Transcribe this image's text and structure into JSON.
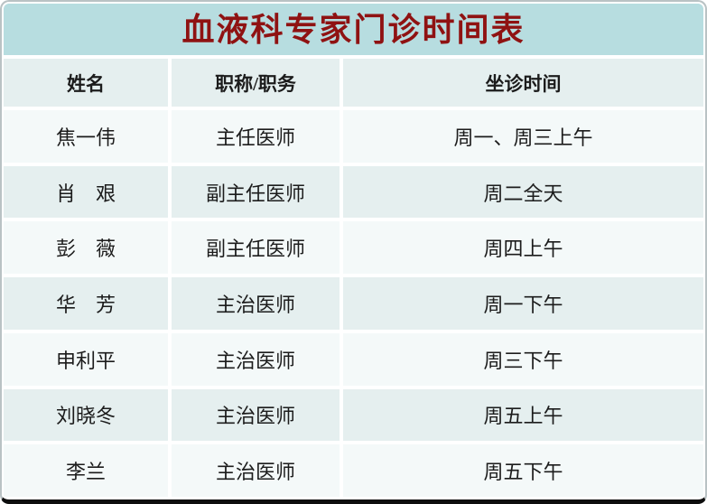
{
  "title": "血液科专家门诊时间表",
  "table": {
    "headers": [
      "姓名",
      "职称/职务",
      "坐诊时间"
    ],
    "rows": [
      [
        "焦一伟",
        "主任医师",
        "周一、周三上午"
      ],
      [
        "肖　艰",
        "副主任医师",
        "周二全天"
      ],
      [
        "彭　薇",
        "副主任医师",
        "周四上午"
      ],
      [
        "华　芳",
        "主治医师",
        "周一下午"
      ],
      [
        "申利平",
        "主治医师",
        "周三下午"
      ],
      [
        "刘晓冬",
        "主治医师",
        "周五上午"
      ],
      [
        "李兰",
        "主治医师",
        "周五下午"
      ]
    ]
  },
  "colors": {
    "title_bg": "#b7dde0",
    "title_text": "#8f1212",
    "header_bg": "#e5efef",
    "row_odd_bg": "#f4f9f9",
    "row_even_bg": "#e5efef",
    "text": "#1c1c1c"
  }
}
